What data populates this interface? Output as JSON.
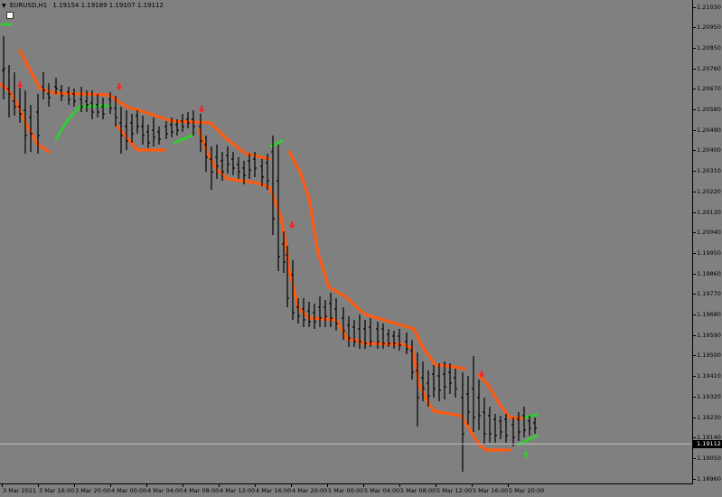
{
  "header": {
    "symbol": "EURUSD,H1",
    "ohlc": "1.19154 1.19189 1.19107 1.19112"
  },
  "current_price": "1.19112",
  "price_axis": [
    "1.21030",
    "1.20950",
    "1.20850",
    "1.20760",
    "1.20670",
    "1.20580",
    "1.20490",
    "1.20400",
    "1.20310",
    "1.20220",
    "1.20130",
    "1.20040",
    "1.19950",
    "1.19860",
    "1.19770",
    "1.19680",
    "1.19590",
    "1.19500",
    "1.19410",
    "1.19320",
    "1.19230",
    "1.19140",
    "1.19050",
    "1.18960"
  ],
  "time_axis": [
    "3 Mar 2021",
    "3 Mar 16:00",
    "3 Mar 20:00",
    "4 Mar 00:00",
    "4 Mar 04:00",
    "4 Mar 08:00",
    "4 Mar 12:00",
    "4 Mar 16:00",
    "4 Mar 20:00",
    "5 Mar 00:00",
    "5 Mar 04:00",
    "5 Mar 08:00",
    "5 Mar 12:00",
    "5 Mar 16:00",
    "5 Mar 20:00"
  ],
  "colors": {
    "background": "#808080",
    "bars": "#000000",
    "channel": "#ff5a10",
    "trend_up": "#33cc33",
    "sell_arrow": "#ff2020",
    "buy_arrow": "#33cc33",
    "price_line": "#c0c0c0"
  },
  "chart_data": {
    "type": "ohlc",
    "symbol": "EURUSD",
    "timeframe": "H1",
    "ylim": [
      1.1886,
      1.2112
    ],
    "last_price": 1.19112
  }
}
